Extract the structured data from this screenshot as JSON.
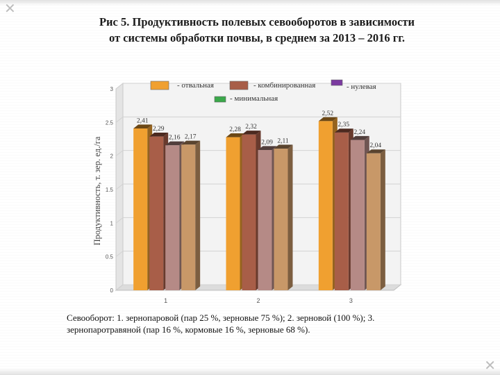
{
  "title": {
    "line1": "Рис 5. Продуктивность полевых севооборотов в зависимости",
    "line2": "от системы обработки почвы, в среднем за 2013 – 2016 гг."
  },
  "caption": {
    "line1": "Севооборот: 1. зернопаровой (пар 25 %, зерновые 75 %); 2. зерновой (100 %); 3.",
    "line2": "зернопаротравяной (пар 16 %, кормовые 16 %, зерновые 68 %)."
  },
  "corner_marks": {
    "top_left": "✕",
    "bottom_right": "✕"
  },
  "chart_data": {
    "type": "bar",
    "categories": [
      "1",
      "2",
      "3"
    ],
    "series": [
      {
        "name": "- отвальная",
        "values": [
          2.41,
          2.28,
          2.52
        ],
        "color": "#f0a030"
      },
      {
        "name": "- комбинированная",
        "values": [
          2.29,
          2.32,
          2.35
        ],
        "color": "#a85e48"
      },
      {
        "name": "- нулевая",
        "values": [
          2.16,
          2.09,
          2.24
        ],
        "color": "#b58a86"
      },
      {
        "name": "- минимальная",
        "values": [
          2.17,
          2.11,
          2.04
        ],
        "color": "#c89868"
      }
    ],
    "legend_swatch_colors": [
      "#f0a030",
      "#a85e48",
      "#7b3aa0",
      "#3aa84a"
    ],
    "value_labels": [
      [
        "2,41",
        "2,29",
        "2,16",
        "2,17"
      ],
      [
        "2,28",
        "2,32",
        "2,09",
        "2,11"
      ],
      [
        "2,52",
        "2,35",
        "2,24",
        "2,04"
      ]
    ],
    "title": "",
    "xlabel": "",
    "ylabel": "Продуктивность, т. зер. ед./га",
    "ylim": [
      0,
      3
    ],
    "yticks": [
      "0",
      "0.5",
      "1",
      "1.5",
      "2",
      "2.5",
      "3"
    ],
    "legend_position": "top"
  }
}
